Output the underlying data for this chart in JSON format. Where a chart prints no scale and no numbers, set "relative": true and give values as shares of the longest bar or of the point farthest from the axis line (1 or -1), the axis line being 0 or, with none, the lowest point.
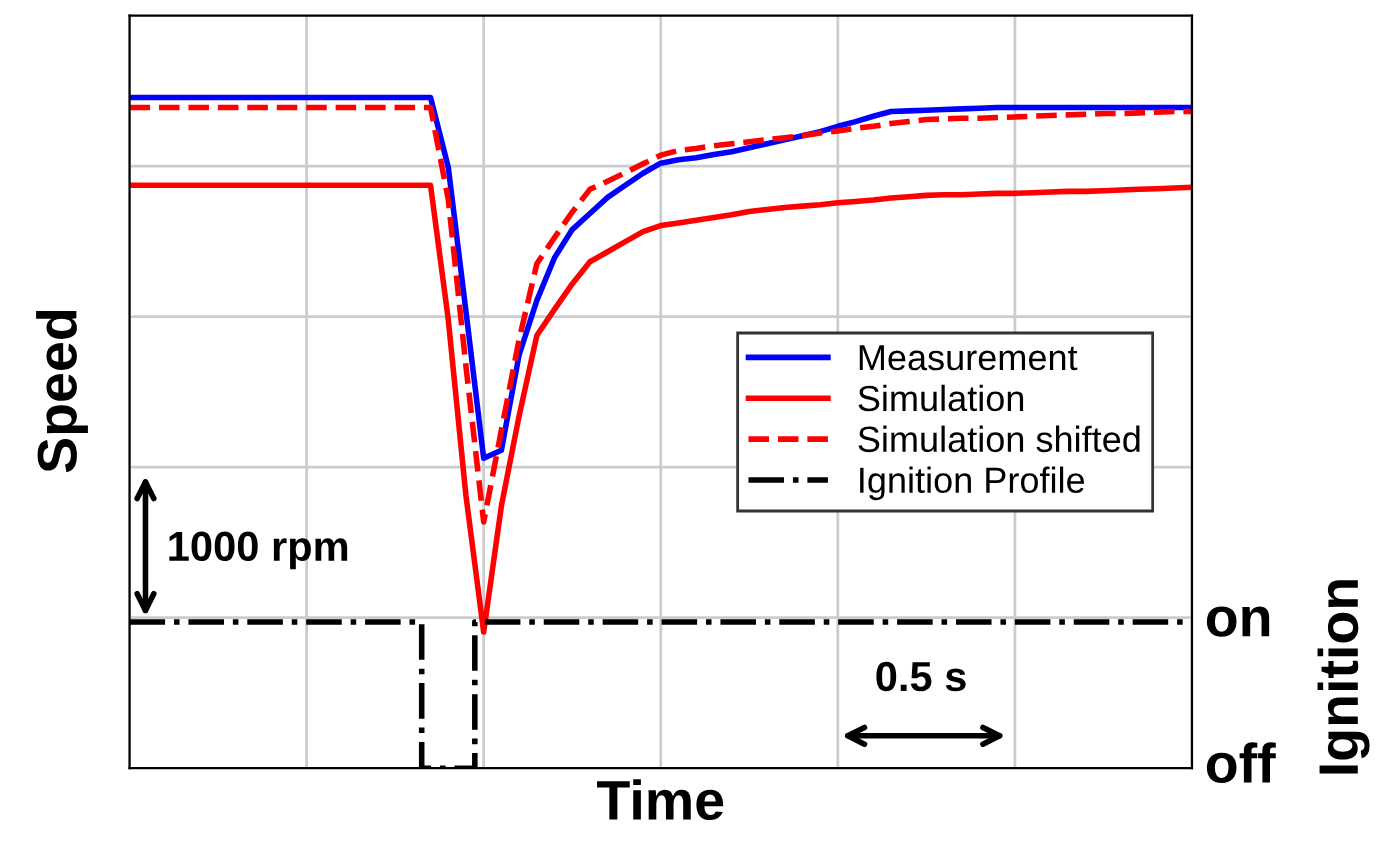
{
  "chart_data": {
    "type": "line",
    "xlabel": "Time",
    "ylabel": "Speed",
    "y2label": "Ignition",
    "relative": true,
    "categories": [
      null,
      null,
      null,
      null,
      null,
      null,
      null,
      null,
      null,
      null,
      null,
      null,
      null,
      null,
      null,
      null,
      null,
      null,
      null,
      null,
      null,
      null,
      null,
      null,
      null,
      null,
      null,
      null,
      null,
      null,
      null,
      null,
      null,
      null,
      null,
      null,
      null,
      null,
      null,
      null,
      null,
      null,
      null,
      null,
      null,
      null,
      null,
      null,
      null,
      null,
      null,
      null,
      null,
      null,
      null,
      null,
      null,
      null,
      null,
      null,
      null
    ],
    "grid": true,
    "legend": "right",
    "tick_labels": false,
    "annotations": [
      "1000 rpm",
      "0.5 s",
      "on",
      "off"
    ],
    "series": [
      {
        "name": "Measurement",
        "color": "#0000ff",
        "line_style": "solid",
        "values": [
          1,
          1,
          1,
          1,
          1,
          1,
          1,
          1,
          1,
          1,
          1,
          1,
          1,
          1,
          1,
          1,
          1,
          1,
          0.896,
          0.681,
          0.462,
          0.474,
          0.616,
          0.697,
          0.761,
          0.803,
          0.827,
          0.851,
          0.869,
          0.887,
          0.902,
          0.907,
          0.91,
          0.915,
          0.919,
          0.925,
          0.931,
          0.937,
          0.943,
          0.949,
          0.957,
          0.964,
          0.972,
          0.979,
          0.98,
          0.981,
          0.982,
          0.983,
          0.984,
          0.985,
          0.985,
          0.985,
          0.985,
          0.985,
          0.985,
          0.985,
          0.985,
          0.985,
          0.985,
          0.985,
          0.985
        ]
      },
      {
        "name": "Simulation",
        "color": "#ff0000",
        "line_style": "solid",
        "values": [
          0.869,
          0.869,
          0.869,
          0.869,
          0.869,
          0.869,
          0.869,
          0.869,
          0.869,
          0.869,
          0.869,
          0.869,
          0.869,
          0.869,
          0.869,
          0.869,
          0.869,
          0.869,
          0.669,
          0.406,
          0.203,
          0.391,
          0.525,
          0.645,
          0.684,
          0.722,
          0.755,
          0.77,
          0.785,
          0.8,
          0.809,
          0.813,
          0.817,
          0.821,
          0.825,
          0.83,
          0.833,
          0.836,
          0.838,
          0.84,
          0.843,
          0.845,
          0.847,
          0.85,
          0.852,
          0.854,
          0.855,
          0.855,
          0.856,
          0.857,
          0.857,
          0.858,
          0.859,
          0.86,
          0.86,
          0.861,
          0.862,
          0.863,
          0.864,
          0.865,
          0.866
        ]
      },
      {
        "name": "Simulation shifted",
        "color": "#ff0000",
        "line_style": "dashed",
        "values": [
          0.985,
          0.985,
          0.985,
          0.985,
          0.985,
          0.985,
          0.985,
          0.985,
          0.985,
          0.985,
          0.985,
          0.985,
          0.985,
          0.985,
          0.985,
          0.985,
          0.985,
          0.985,
          0.848,
          0.599,
          0.367,
          0.504,
          0.639,
          0.752,
          0.791,
          0.829,
          0.863,
          0.875,
          0.888,
          0.901,
          0.914,
          0.921,
          0.924,
          0.928,
          0.931,
          0.934,
          0.937,
          0.94,
          0.943,
          0.947,
          0.95,
          0.954,
          0.957,
          0.961,
          0.964,
          0.967,
          0.968,
          0.969,
          0.969,
          0.97,
          0.971,
          0.972,
          0.973,
          0.974,
          0.975,
          0.976,
          0.976,
          0.977,
          0.978,
          0.979,
          0.979
        ]
      },
      {
        "name": "Ignition Profile",
        "type": "step",
        "color": "#000000",
        "line_style": "dashdot",
        "values": [
          0.218,
          0.218,
          0.218,
          0.218,
          0.218,
          0.218,
          0.218,
          0.218,
          0.218,
          0.218,
          0.218,
          0.218,
          0.218,
          0.218,
          0.218,
          0.218,
          0.218,
          0,
          0,
          0,
          0.218,
          0.218,
          0.218,
          0.218,
          0.218,
          0.218,
          0.218,
          0.218,
          0.218,
          0.218,
          0.218,
          0.218,
          0.218,
          0.218,
          0.218,
          0.218,
          0.218,
          0.218,
          0.218,
          0.218,
          0.218,
          0.218,
          0.218,
          0.218,
          0.218,
          0.218,
          0.218,
          0.218,
          0.218,
          0.218,
          0.218,
          0.218,
          0.218,
          0.218,
          0.218,
          0.218,
          0.218,
          0.218,
          0.218,
          0.218,
          0.218
        ]
      }
    ]
  }
}
